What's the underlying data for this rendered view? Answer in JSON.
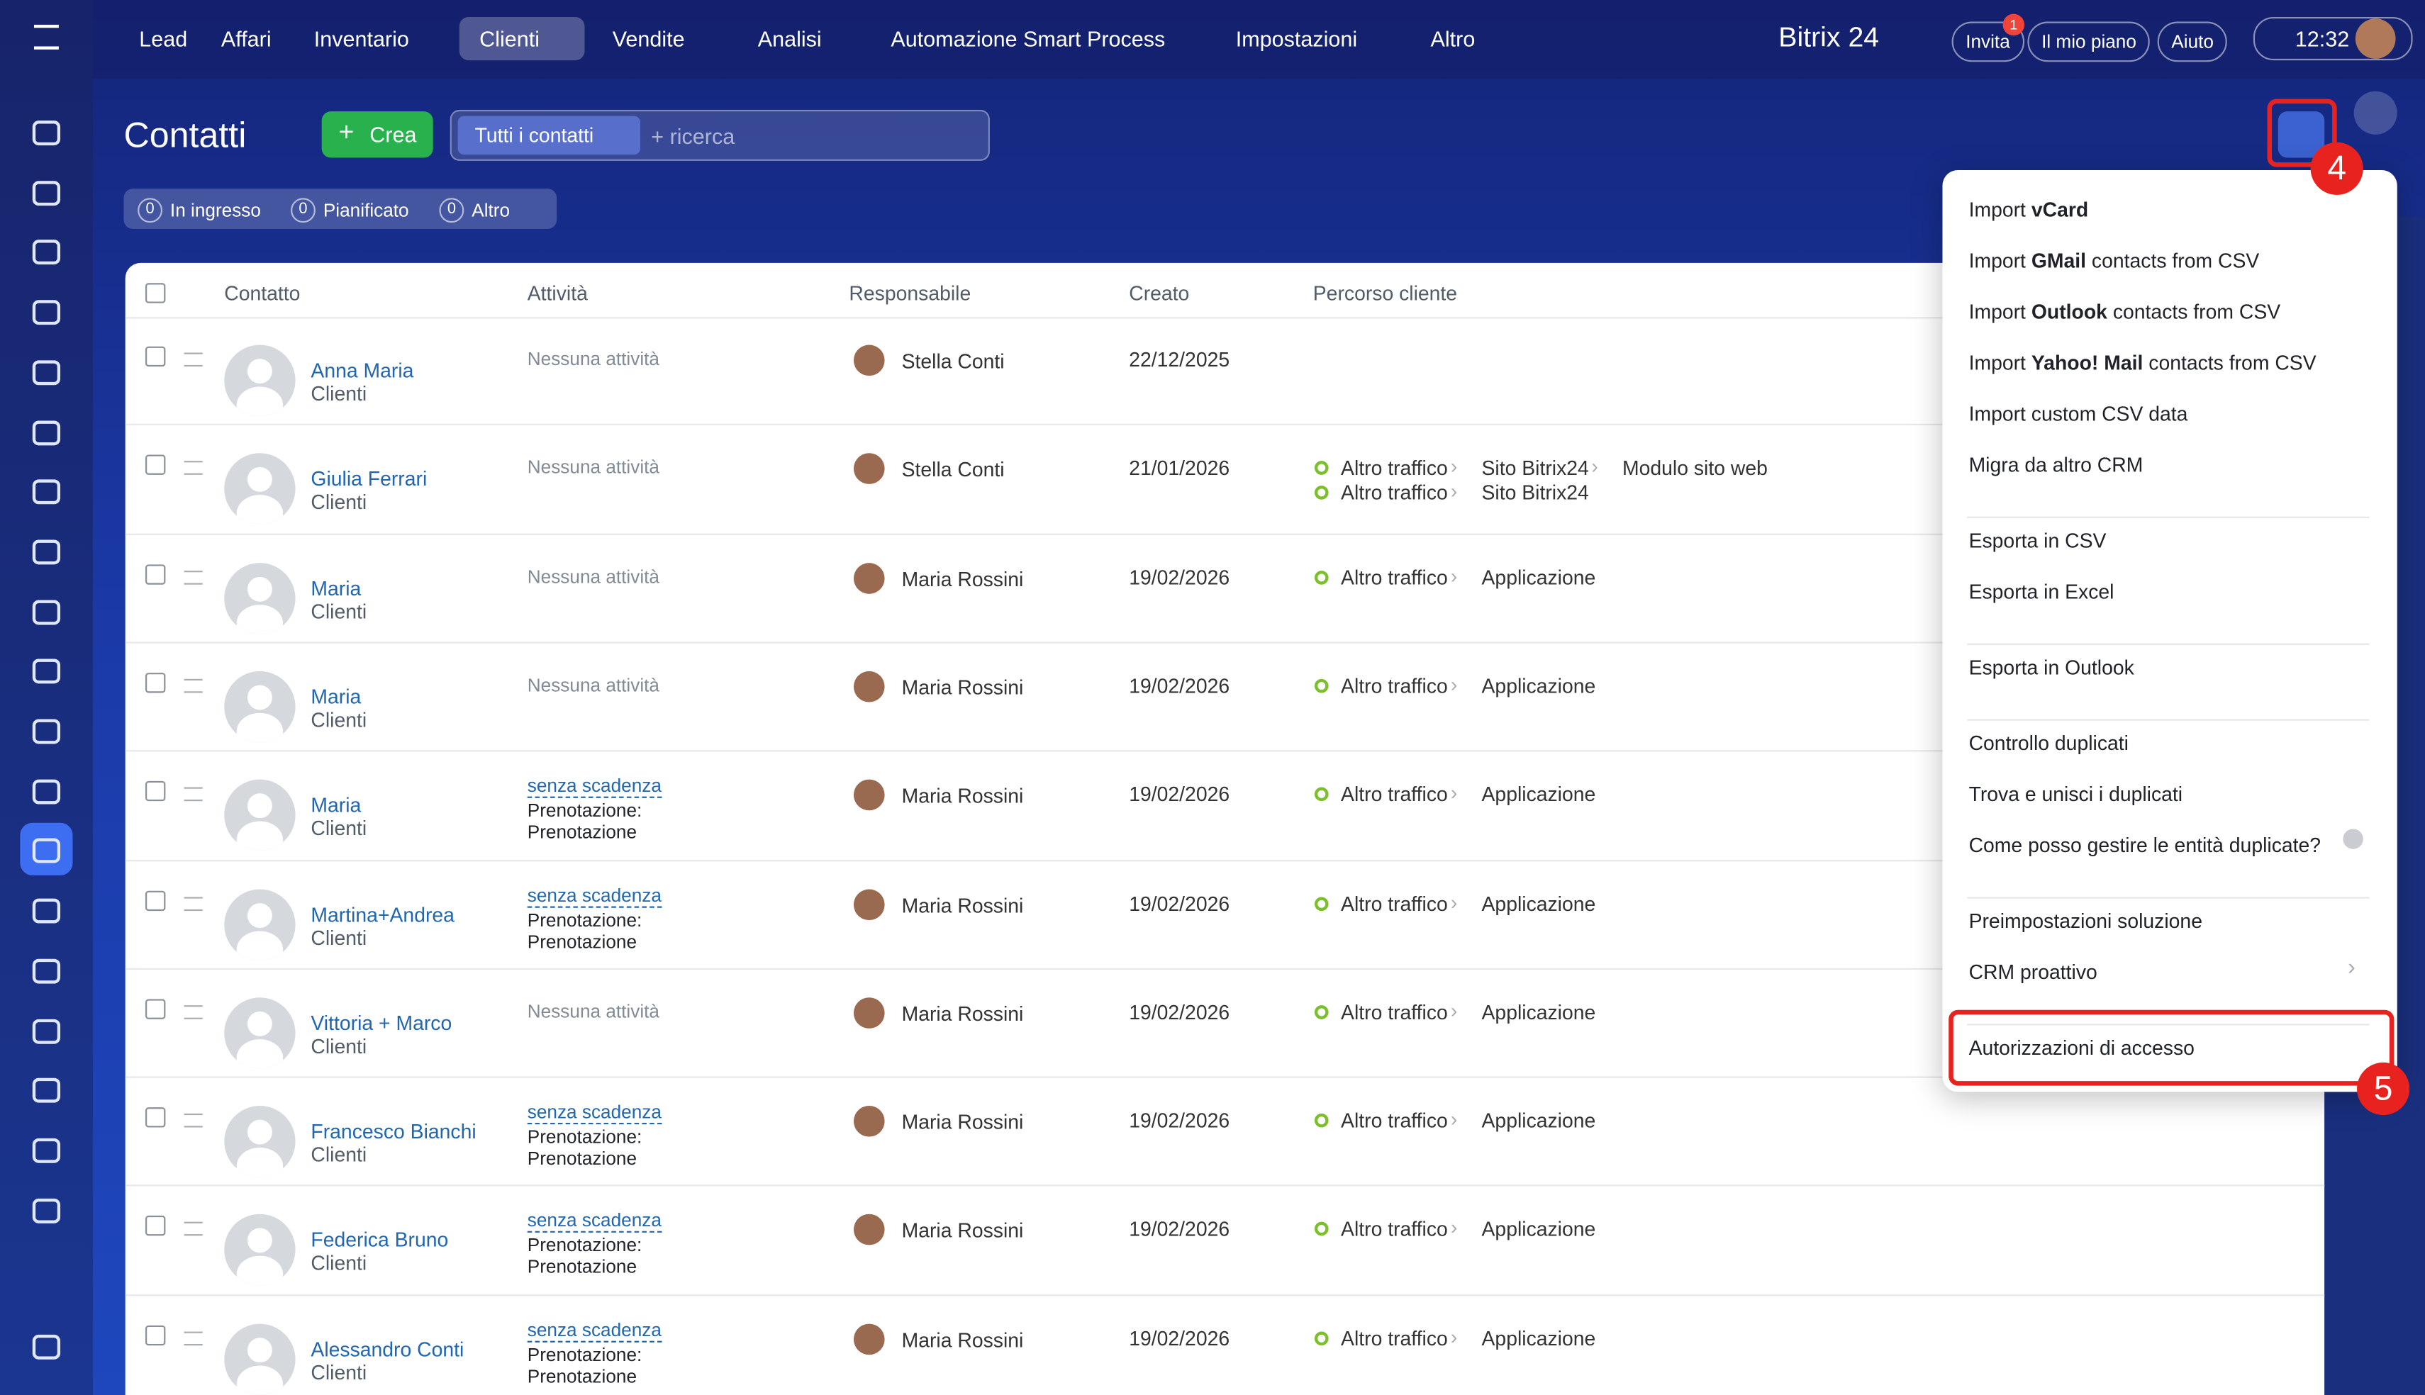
{
  "top_nav": {
    "items": [
      "Lead",
      "Affari",
      "Inventario",
      "Clienti",
      "Vendite",
      "Analisi",
      "Automazione Smart Process",
      "Impostazioni",
      "Altro"
    ],
    "brand": "Bitrix 24",
    "invite": "Invita",
    "invite_badge": "1",
    "plan": "Il mio piano",
    "help": "Aiuto",
    "time": "12:32"
  },
  "header": {
    "title": "Contatti",
    "create": "Crea",
    "filter_chip": "Tutti i contatti",
    "search_placeholder": "+ ricerca",
    "counters": [
      {
        "count": "0",
        "label": "In ingresso"
      },
      {
        "count": "0",
        "label": "Pianificato"
      },
      {
        "count": "0",
        "label": "Altro"
      }
    ]
  },
  "table": {
    "columns": [
      "Contatto",
      "Attività",
      "Responsabile",
      "Creato",
      "Percorso cliente"
    ],
    "rows": [
      {
        "name": "Anna Maria",
        "type": "Clienti",
        "activity": {
          "text": "Nessuna attività"
        },
        "responsible": "Stella Conti",
        "created": "22/12/2025",
        "path": []
      },
      {
        "name": "Giulia Ferrari",
        "type": "Clienti",
        "activity": {
          "text": "Nessuna attività"
        },
        "responsible": "Stella Conti",
        "created": "21/01/2026",
        "path": [
          [
            "Altro traffico",
            "Sito Bitrix24",
            "Modulo sito web"
          ],
          [
            "Altro traffico",
            "Sito Bitrix24"
          ]
        ]
      },
      {
        "name": "Maria",
        "type": "Clienti",
        "activity": {
          "text": "Nessuna attività"
        },
        "responsible": "Maria Rossini",
        "created": "19/02/2026",
        "path": [
          [
            "Altro traffico",
            "Applicazione"
          ]
        ]
      },
      {
        "name": "Maria",
        "type": "Clienti",
        "activity": {
          "text": "Nessuna attività"
        },
        "responsible": "Maria Rossini",
        "created": "19/02/2026",
        "path": [
          [
            "Altro traffico",
            "Applicazione"
          ]
        ]
      },
      {
        "name": "Maria",
        "type": "Clienti",
        "activity": {
          "link": "senza scadenza",
          "lines": [
            "Prenotazione:",
            "Prenotazione"
          ]
        },
        "responsible": "Maria Rossini",
        "created": "19/02/2026",
        "path": [
          [
            "Altro traffico",
            "Applicazione"
          ]
        ]
      },
      {
        "name": "Martina+Andrea",
        "type": "Clienti",
        "activity": {
          "link": "senza scadenza",
          "lines": [
            "Prenotazione:",
            "Prenotazione"
          ]
        },
        "responsible": "Maria Rossini",
        "created": "19/02/2026",
        "path": [
          [
            "Altro traffico",
            "Applicazione"
          ]
        ]
      },
      {
        "name": "Vittoria + Marco",
        "type": "Clienti",
        "activity": {
          "text": "Nessuna attività"
        },
        "responsible": "Maria Rossini",
        "created": "19/02/2026",
        "path": [
          [
            "Altro traffico",
            "Applicazione"
          ]
        ]
      },
      {
        "name": "Francesco Bianchi",
        "type": "Clienti",
        "activity": {
          "link": "senza scadenza",
          "lines": [
            "Prenotazione:",
            "Prenotazione"
          ]
        },
        "responsible": "Maria Rossini",
        "created": "19/02/2026",
        "path": [
          [
            "Altro traffico",
            "Applicazione"
          ]
        ]
      },
      {
        "name": "Federica Bruno",
        "type": "Clienti",
        "activity": {
          "link": "senza scadenza",
          "lines": [
            "Prenotazione:",
            "Prenotazione"
          ]
        },
        "responsible": "Maria Rossini",
        "created": "19/02/2026",
        "path": [
          [
            "Altro traffico",
            "Applicazione"
          ]
        ]
      },
      {
        "name": "Alessandro Conti",
        "type": "Clienti",
        "activity": {
          "link": "senza scadenza",
          "lines": [
            "Prenotazione:",
            "Prenotazione"
          ]
        },
        "responsible": "Maria Rossini",
        "created": "19/02/2026",
        "path": [
          [
            "Altro traffico",
            "Applicazione"
          ]
        ]
      }
    ]
  },
  "menu": {
    "groups": [
      [
        {
          "pre": "Import ",
          "bold": "vCard"
        },
        {
          "pre": "Import ",
          "bold": "GMail",
          "post": " contacts from CSV"
        },
        {
          "pre": "Import ",
          "bold": "Outlook",
          "post": " contacts from CSV"
        },
        {
          "pre": "Import ",
          "bold": "Yahoo! Mail",
          "post": " contacts from CSV"
        },
        {
          "pre": "Import custom CSV data"
        },
        {
          "pre": "Migra da altro CRM"
        }
      ],
      [
        {
          "pre": "Esporta in CSV"
        },
        {
          "pre": "Esporta in Excel"
        }
      ],
      [
        {
          "pre": "Esporta in Outlook"
        }
      ],
      [
        {
          "pre": "Controllo duplicati"
        },
        {
          "pre": "Trova e unisci i duplicati"
        },
        {
          "pre": "Come posso gestire le entità duplicate?"
        }
      ],
      [
        {
          "pre": "Preimpostazioni soluzione"
        },
        {
          "pre": "CRM proattivo"
        }
      ],
      [
        {
          "pre": "Autorizzazioni di accesso"
        }
      ]
    ]
  },
  "annotations": [
    "4",
    "5"
  ]
}
